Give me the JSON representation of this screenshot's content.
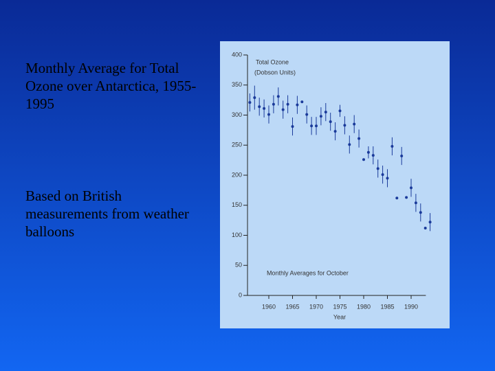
{
  "slide": {
    "heading": "Monthly Average for Total Ozone over Antarctica, 1955-1995",
    "note": "Based on British measurements from weather balloons"
  },
  "chart_data": {
    "type": "scatter",
    "y_label": "Total Ozone",
    "y_unit": "(Dobson Units)",
    "annotation": "Monthly Averages for October",
    "x_label": "Year",
    "x": [
      1956,
      1957,
      1958,
      1959,
      1960,
      1961,
      1962,
      1963,
      1964,
      1965,
      1966,
      1967,
      1968,
      1969,
      1970,
      1971,
      1972,
      1973,
      1974,
      1975,
      1976,
      1977,
      1978,
      1979,
      1980,
      1981,
      1982,
      1983,
      1984,
      1985,
      1986,
      1987,
      1988,
      1989,
      1990,
      1991,
      1992,
      1993,
      1994
    ],
    "values": [
      321,
      329,
      314,
      311,
      301,
      318,
      331,
      309,
      318,
      281,
      317,
      322,
      301,
      282,
      282,
      298,
      305,
      289,
      273,
      307,
      283,
      251,
      285,
      261,
      226,
      238,
      233,
      211,
      201,
      195,
      248,
      162,
      232,
      163,
      179,
      154,
      138,
      112,
      122
    ],
    "errors": [
      15,
      20,
      15,
      15,
      15,
      15,
      15,
      15,
      15,
      15,
      15,
      0,
      15,
      15,
      15,
      15,
      15,
      15,
      15,
      10,
      15,
      15,
      15,
      15,
      0,
      10,
      15,
      15,
      15,
      15,
      15,
      0,
      15,
      0,
      15,
      15,
      15,
      0,
      15
    ],
    "color": "#1a3a9a",
    "xlim": [
      1955,
      1996
    ],
    "ylim": [
      0,
      400
    ],
    "xticks": [
      1960,
      1965,
      1970,
      1975,
      1980,
      1985,
      1990
    ],
    "yticks": [
      0,
      50,
      100,
      150,
      200,
      250,
      300,
      350,
      400
    ]
  }
}
